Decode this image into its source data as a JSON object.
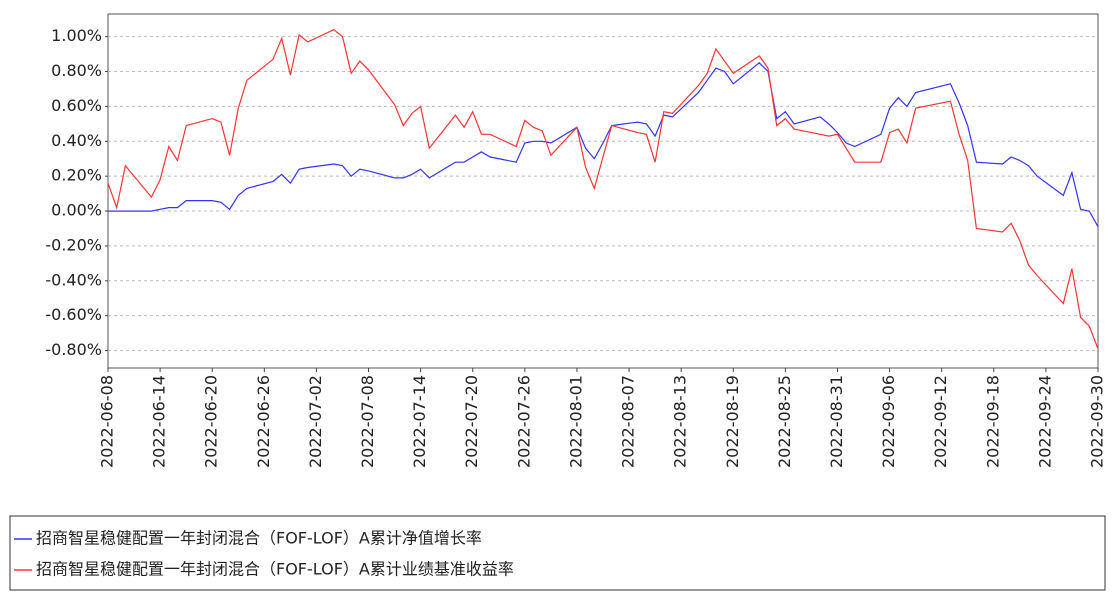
{
  "chart_data": {
    "type": "line",
    "x": [
      "2022-06-08",
      "2022-06-09",
      "2022-06-10",
      "2022-06-13",
      "2022-06-14",
      "2022-06-15",
      "2022-06-16",
      "2022-06-17",
      "2022-06-20",
      "2022-06-21",
      "2022-06-22",
      "2022-06-23",
      "2022-06-24",
      "2022-06-27",
      "2022-06-28",
      "2022-06-29",
      "2022-06-30",
      "2022-07-01",
      "2022-07-04",
      "2022-07-05",
      "2022-07-06",
      "2022-07-07",
      "2022-07-08",
      "2022-07-11",
      "2022-07-12",
      "2022-07-13",
      "2022-07-14",
      "2022-07-15",
      "2022-07-18",
      "2022-07-19",
      "2022-07-20",
      "2022-07-21",
      "2022-07-22",
      "2022-07-25",
      "2022-07-26",
      "2022-07-27",
      "2022-07-28",
      "2022-07-29",
      "2022-08-01",
      "2022-08-02",
      "2022-08-03",
      "2022-08-04",
      "2022-08-05",
      "2022-08-08",
      "2022-08-09",
      "2022-08-10",
      "2022-08-11",
      "2022-08-12",
      "2022-08-15",
      "2022-08-16",
      "2022-08-17",
      "2022-08-18",
      "2022-08-19",
      "2022-08-22",
      "2022-08-23",
      "2022-08-24",
      "2022-08-25",
      "2022-08-26",
      "2022-08-29",
      "2022-08-30",
      "2022-08-31",
      "2022-09-01",
      "2022-09-02",
      "2022-09-05",
      "2022-09-06",
      "2022-09-07",
      "2022-09-08",
      "2022-09-09",
      "2022-09-13",
      "2022-09-14",
      "2022-09-15",
      "2022-09-16",
      "2022-09-19",
      "2022-09-20",
      "2022-09-21",
      "2022-09-22",
      "2022-09-23",
      "2022-09-26",
      "2022-09-27",
      "2022-09-28",
      "2022-09-29",
      "2022-09-30"
    ],
    "series": [
      {
        "name": "招商智星稳健配置一年封闭混合（FOF-LOF）A累计净值增长率",
        "color": "#3333ff",
        "values": [
          0.0,
          0.0,
          0.0,
          0.0,
          0.01,
          0.02,
          0.02,
          0.06,
          0.06,
          0.05,
          0.01,
          0.09,
          0.13,
          0.17,
          0.21,
          0.16,
          0.24,
          0.25,
          0.27,
          0.26,
          0.2,
          0.24,
          0.23,
          0.19,
          0.19,
          0.21,
          0.24,
          0.19,
          0.28,
          0.28,
          0.31,
          0.34,
          0.31,
          0.28,
          0.39,
          0.4,
          0.4,
          0.39,
          0.48,
          0.36,
          0.3,
          0.39,
          0.49,
          0.51,
          0.5,
          0.43,
          0.55,
          0.54,
          0.68,
          0.75,
          0.82,
          0.8,
          0.73,
          0.85,
          0.8,
          0.53,
          0.57,
          0.5,
          0.54,
          0.5,
          0.45,
          0.39,
          0.37,
          0.44,
          0.59,
          0.65,
          0.6,
          0.68,
          0.73,
          0.62,
          0.49,
          0.28,
          0.27,
          0.31,
          0.29,
          0.26,
          0.2,
          0.09,
          0.22,
          0.01,
          0.0,
          -0.09
        ]
      },
      {
        "name": "招商智星稳健配置一年封闭混合（FOF-LOF）A累计业绩基准收益率",
        "color": "#ff3333",
        "values": [
          0.16,
          0.02,
          0.26,
          0.08,
          0.18,
          0.37,
          0.29,
          0.49,
          0.53,
          0.51,
          0.32,
          0.59,
          0.75,
          0.87,
          0.99,
          0.78,
          1.01,
          0.97,
          1.04,
          1.0,
          0.79,
          0.86,
          0.81,
          0.61,
          0.49,
          0.56,
          0.6,
          0.36,
          0.55,
          0.48,
          0.57,
          0.44,
          0.44,
          0.37,
          0.52,
          0.48,
          0.46,
          0.32,
          0.48,
          0.25,
          0.13,
          0.31,
          0.49,
          0.45,
          0.44,
          0.28,
          0.57,
          0.56,
          0.72,
          0.79,
          0.93,
          0.86,
          0.79,
          0.89,
          0.82,
          0.49,
          0.53,
          0.47,
          0.44,
          0.43,
          0.44,
          0.36,
          0.28,
          0.28,
          0.45,
          0.47,
          0.39,
          0.59,
          0.63,
          0.44,
          0.29,
          -0.1,
          -0.12,
          -0.07,
          -0.17,
          -0.31,
          -0.37,
          -0.53,
          -0.33,
          -0.61,
          -0.66,
          -0.79
        ]
      }
    ],
    "xlim": [
      "2022-06-08",
      "2022-09-30"
    ],
    "xticks": [
      "2022-06-08",
      "2022-06-14",
      "2022-06-20",
      "2022-06-26",
      "2022-07-02",
      "2022-07-08",
      "2022-07-14",
      "2022-07-20",
      "2022-07-26",
      "2022-08-01",
      "2022-08-07",
      "2022-08-13",
      "2022-08-19",
      "2022-08-25",
      "2022-08-31",
      "2022-09-06",
      "2022-09-12",
      "2022-09-18",
      "2022-09-24",
      "2022-09-30"
    ],
    "ylim": [
      -0.9,
      1.13
    ],
    "yticks": [
      {
        "value": -0.8,
        "label": "-0.80%"
      },
      {
        "value": -0.6,
        "label": "-0.60%"
      },
      {
        "value": -0.4,
        "label": "-0.40%"
      },
      {
        "value": -0.2,
        "label": "-0.20%"
      },
      {
        "value": 0,
        "label": "0.00%"
      },
      {
        "value": 0.2,
        "label": "0.20%"
      },
      {
        "value": 0.4,
        "label": "0.40%"
      },
      {
        "value": 0.6,
        "label": "0.60%"
      },
      {
        "value": 0.8,
        "label": "0.80%"
      },
      {
        "value": 1.0,
        "label": "1.00%"
      }
    ],
    "grid": true
  }
}
